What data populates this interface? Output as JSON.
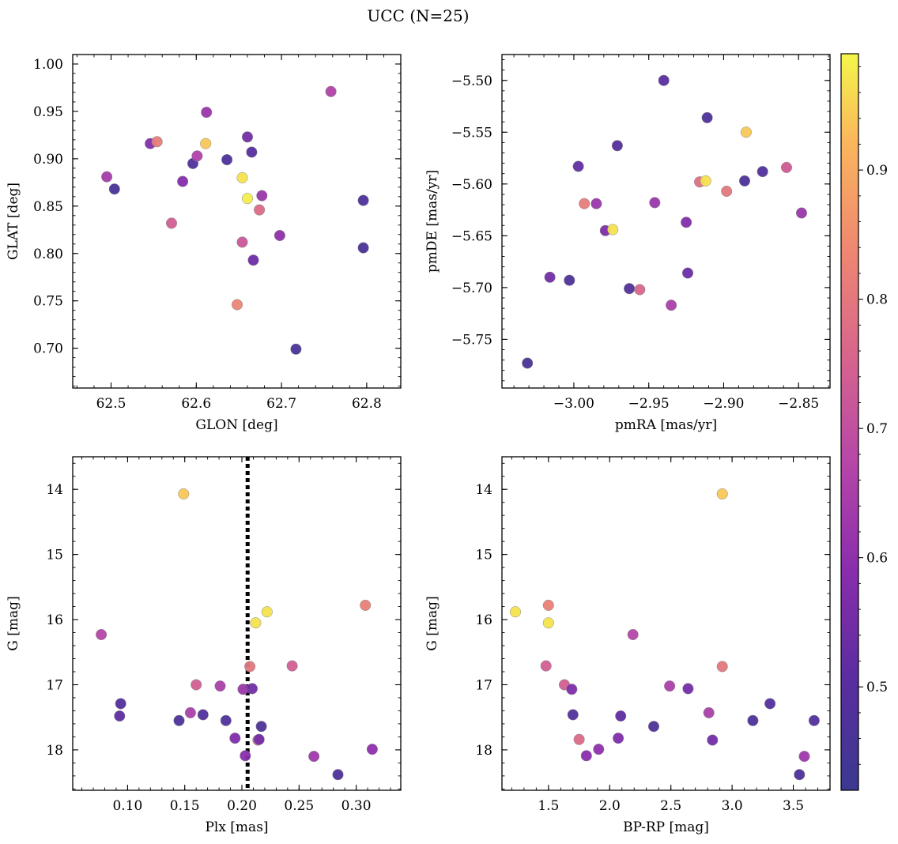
{
  "figure_title": "UCC (N=25)",
  "colorbar": {
    "range": [
      0.42,
      0.99
    ],
    "ticks": [
      "0.5",
      "0.6",
      "0.7",
      "0.8",
      "0.9"
    ],
    "tick_values": [
      0.5,
      0.6,
      0.7,
      0.8,
      0.9
    ],
    "colormap": "plasma"
  },
  "chart_data": [
    {
      "type": "scatter",
      "xlabel": "GLON [deg]",
      "ylabel": "GLAT [deg]",
      "xlim": [
        62.455,
        62.84
      ],
      "ylim": [
        0.658,
        1.01
      ],
      "xticks": [
        62.5,
        62.6,
        62.7,
        62.8
      ],
      "xticklabels": [
        "62.5",
        "62.6",
        "62.7",
        "62.8"
      ],
      "yticks": [
        0.7,
        0.75,
        0.8,
        0.85,
        0.9,
        0.95,
        1.0
      ],
      "yticklabels": [
        "0.70",
        "0.75",
        "0.80",
        "0.85",
        "0.90",
        "0.95",
        "1.00"
      ],
      "points": [
        {
          "x": 62.504,
          "y": 0.868,
          "c": 0.46
        },
        {
          "x": 62.495,
          "y": 0.881,
          "c": 0.64
        },
        {
          "x": 62.546,
          "y": 0.916,
          "c": 0.58
        },
        {
          "x": 62.554,
          "y": 0.918,
          "c": 0.81
        },
        {
          "x": 62.571,
          "y": 0.832,
          "c": 0.74
        },
        {
          "x": 62.584,
          "y": 0.876,
          "c": 0.58
        },
        {
          "x": 62.596,
          "y": 0.895,
          "c": 0.48
        },
        {
          "x": 62.601,
          "y": 0.903,
          "c": 0.66
        },
        {
          "x": 62.611,
          "y": 0.916,
          "c": 0.94
        },
        {
          "x": 62.612,
          "y": 0.949,
          "c": 0.62
        },
        {
          "x": 62.636,
          "y": 0.899,
          "c": 0.47
        },
        {
          "x": 62.648,
          "y": 0.746,
          "c": 0.83
        },
        {
          "x": 62.654,
          "y": 0.88,
          "c": 0.97
        },
        {
          "x": 62.654,
          "y": 0.812,
          "c": 0.72
        },
        {
          "x": 62.66,
          "y": 0.858,
          "c": 0.98
        },
        {
          "x": 62.66,
          "y": 0.923,
          "c": 0.55
        },
        {
          "x": 62.665,
          "y": 0.907,
          "c": 0.5
        },
        {
          "x": 62.667,
          "y": 0.793,
          "c": 0.54
        },
        {
          "x": 62.674,
          "y": 0.846,
          "c": 0.77
        },
        {
          "x": 62.677,
          "y": 0.861,
          "c": 0.62
        },
        {
          "x": 62.698,
          "y": 0.819,
          "c": 0.6
        },
        {
          "x": 62.717,
          "y": 0.699,
          "c": 0.46
        },
        {
          "x": 62.758,
          "y": 0.971,
          "c": 0.66
        },
        {
          "x": 62.796,
          "y": 0.856,
          "c": 0.47
        },
        {
          "x": 62.796,
          "y": 0.806,
          "c": 0.46
        }
      ]
    },
    {
      "type": "scatter",
      "xlabel": "pmRA [mas/yr]",
      "ylabel": "pmDE [mas/yr]",
      "xlim": [
        -3.048,
        -2.829
      ],
      "ylim": [
        -5.797,
        -5.475
      ],
      "xticks": [
        -3.0,
        -2.95,
        -2.9,
        -2.85
      ],
      "xticklabels": [
        "−3.00",
        "−2.95",
        "−2.90",
        "−2.85"
      ],
      "yticks": [
        -5.75,
        -5.7,
        -5.65,
        -5.6,
        -5.55,
        -5.5
      ],
      "yticklabels": [
        "−5.75",
        "−5.70",
        "−5.65",
        "−5.60",
        "−5.55",
        "−5.50"
      ],
      "points": [
        {
          "x": -3.031,
          "y": -5.773,
          "c": 0.46
        },
        {
          "x": -3.016,
          "y": -5.69,
          "c": 0.55
        },
        {
          "x": -3.003,
          "y": -5.693,
          "c": 0.47
        },
        {
          "x": -2.997,
          "y": -5.583,
          "c": 0.52
        },
        {
          "x": -2.993,
          "y": -5.619,
          "c": 0.81
        },
        {
          "x": -2.985,
          "y": -5.619,
          "c": 0.62
        },
        {
          "x": -2.979,
          "y": -5.645,
          "c": 0.57
        },
        {
          "x": -2.974,
          "y": -5.644,
          "c": 0.97
        },
        {
          "x": -2.971,
          "y": -5.563,
          "c": 0.49
        },
        {
          "x": -2.963,
          "y": -5.701,
          "c": 0.48
        },
        {
          "x": -2.956,
          "y": -5.702,
          "c": 0.76
        },
        {
          "x": -2.946,
          "y": -5.618,
          "c": 0.62
        },
        {
          "x": -2.94,
          "y": -5.5,
          "c": 0.5
        },
        {
          "x": -2.935,
          "y": -5.717,
          "c": 0.65
        },
        {
          "x": -2.924,
          "y": -5.686,
          "c": 0.54
        },
        {
          "x": -2.925,
          "y": -5.637,
          "c": 0.58
        },
        {
          "x": -2.916,
          "y": -5.598,
          "c": 0.78
        },
        {
          "x": -2.912,
          "y": -5.597,
          "c": 0.97
        },
        {
          "x": -2.911,
          "y": -5.536,
          "c": 0.47
        },
        {
          "x": -2.898,
          "y": -5.607,
          "c": 0.8
        },
        {
          "x": -2.886,
          "y": -5.597,
          "c": 0.47
        },
        {
          "x": -2.885,
          "y": -5.55,
          "c": 0.94
        },
        {
          "x": -2.874,
          "y": -5.588,
          "c": 0.48
        },
        {
          "x": -2.858,
          "y": -5.584,
          "c": 0.73
        },
        {
          "x": -2.848,
          "y": -5.628,
          "c": 0.62
        }
      ]
    },
    {
      "type": "scatter",
      "xlabel": "Plx [mas]",
      "ylabel": "G [mag]",
      "xlim": [
        0.052,
        0.339
      ],
      "ylim": [
        18.62,
        13.5
      ],
      "y_inverted": true,
      "xticks": [
        0.1,
        0.15,
        0.2,
        0.25,
        0.3
      ],
      "xticklabels": [
        "0.10",
        "0.15",
        "0.20",
        "0.25",
        "0.30"
      ],
      "yticks": [
        14,
        15,
        16,
        17,
        18
      ],
      "yticklabels": [
        "14",
        "15",
        "16",
        "17",
        "18"
      ],
      "vline": {
        "x": 0.205,
        "style": "dotted",
        "color": "#000000"
      },
      "points": [
        {
          "x": 0.149,
          "y": 14.07,
          "c": 0.94
        },
        {
          "x": 0.077,
          "y": 16.23,
          "c": 0.67
        },
        {
          "x": 0.094,
          "y": 17.29,
          "c": 0.49
        },
        {
          "x": 0.093,
          "y": 17.48,
          "c": 0.51
        },
        {
          "x": 0.145,
          "y": 17.55,
          "c": 0.47
        },
        {
          "x": 0.155,
          "y": 17.43,
          "c": 0.65
        },
        {
          "x": 0.16,
          "y": 17.0,
          "c": 0.74
        },
        {
          "x": 0.166,
          "y": 17.46,
          "c": 0.48
        },
        {
          "x": 0.181,
          "y": 17.02,
          "c": 0.65
        },
        {
          "x": 0.186,
          "y": 17.55,
          "c": 0.48
        },
        {
          "x": 0.194,
          "y": 17.82,
          "c": 0.57
        },
        {
          "x": 0.201,
          "y": 17.07,
          "c": 0.62
        },
        {
          "x": 0.203,
          "y": 18.09,
          "c": 0.59
        },
        {
          "x": 0.207,
          "y": 16.72,
          "c": 0.8
        },
        {
          "x": 0.209,
          "y": 17.06,
          "c": 0.55
        },
        {
          "x": 0.212,
          "y": 16.05,
          "c": 0.97
        },
        {
          "x": 0.214,
          "y": 17.85,
          "c": 0.77
        },
        {
          "x": 0.215,
          "y": 17.84,
          "c": 0.55
        },
        {
          "x": 0.217,
          "y": 17.64,
          "c": 0.47
        },
        {
          "x": 0.222,
          "y": 15.88,
          "c": 0.97
        },
        {
          "x": 0.244,
          "y": 16.71,
          "c": 0.74
        },
        {
          "x": 0.263,
          "y": 18.1,
          "c": 0.63
        },
        {
          "x": 0.284,
          "y": 18.38,
          "c": 0.47
        },
        {
          "x": 0.308,
          "y": 15.78,
          "c": 0.82
        },
        {
          "x": 0.314,
          "y": 17.99,
          "c": 0.6
        }
      ]
    },
    {
      "type": "scatter",
      "xlabel": "BP-RP [mag]",
      "ylabel": "G [mag]",
      "xlim": [
        1.12,
        3.8
      ],
      "ylim": [
        18.62,
        13.5
      ],
      "y_inverted": true,
      "xticks": [
        1.5,
        2.0,
        2.5,
        3.0,
        3.5
      ],
      "xticklabels": [
        "1.5",
        "2.0",
        "2.5",
        "3.0",
        "3.5"
      ],
      "yticks": [
        14,
        15,
        16,
        17,
        18
      ],
      "yticklabels": [
        "14",
        "15",
        "16",
        "17",
        "18"
      ],
      "points": [
        {
          "x": 2.92,
          "y": 14.07,
          "c": 0.94
        },
        {
          "x": 1.23,
          "y": 15.88,
          "c": 0.97
        },
        {
          "x": 1.5,
          "y": 15.78,
          "c": 0.82
        },
        {
          "x": 1.5,
          "y": 16.05,
          "c": 0.97
        },
        {
          "x": 2.19,
          "y": 16.23,
          "c": 0.67
        },
        {
          "x": 1.48,
          "y": 16.71,
          "c": 0.74
        },
        {
          "x": 2.92,
          "y": 16.72,
          "c": 0.8
        },
        {
          "x": 1.63,
          "y": 17.0,
          "c": 0.74
        },
        {
          "x": 2.49,
          "y": 17.02,
          "c": 0.65
        },
        {
          "x": 1.69,
          "y": 17.07,
          "c": 0.57
        },
        {
          "x": 2.64,
          "y": 17.06,
          "c": 0.55
        },
        {
          "x": 3.31,
          "y": 17.29,
          "c": 0.49
        },
        {
          "x": 2.81,
          "y": 17.43,
          "c": 0.65
        },
        {
          "x": 1.7,
          "y": 17.46,
          "c": 0.48
        },
        {
          "x": 2.09,
          "y": 17.48,
          "c": 0.51
        },
        {
          "x": 3.17,
          "y": 17.55,
          "c": 0.47
        },
        {
          "x": 3.67,
          "y": 17.55,
          "c": 0.48
        },
        {
          "x": 2.36,
          "y": 17.64,
          "c": 0.47
        },
        {
          "x": 2.07,
          "y": 17.82,
          "c": 0.57
        },
        {
          "x": 1.75,
          "y": 17.84,
          "c": 0.77
        },
        {
          "x": 2.84,
          "y": 17.85,
          "c": 0.55
        },
        {
          "x": 1.91,
          "y": 17.99,
          "c": 0.6
        },
        {
          "x": 1.81,
          "y": 18.09,
          "c": 0.59
        },
        {
          "x": 3.59,
          "y": 18.1,
          "c": 0.63
        },
        {
          "x": 3.55,
          "y": 18.38,
          "c": 0.47
        }
      ]
    }
  ]
}
